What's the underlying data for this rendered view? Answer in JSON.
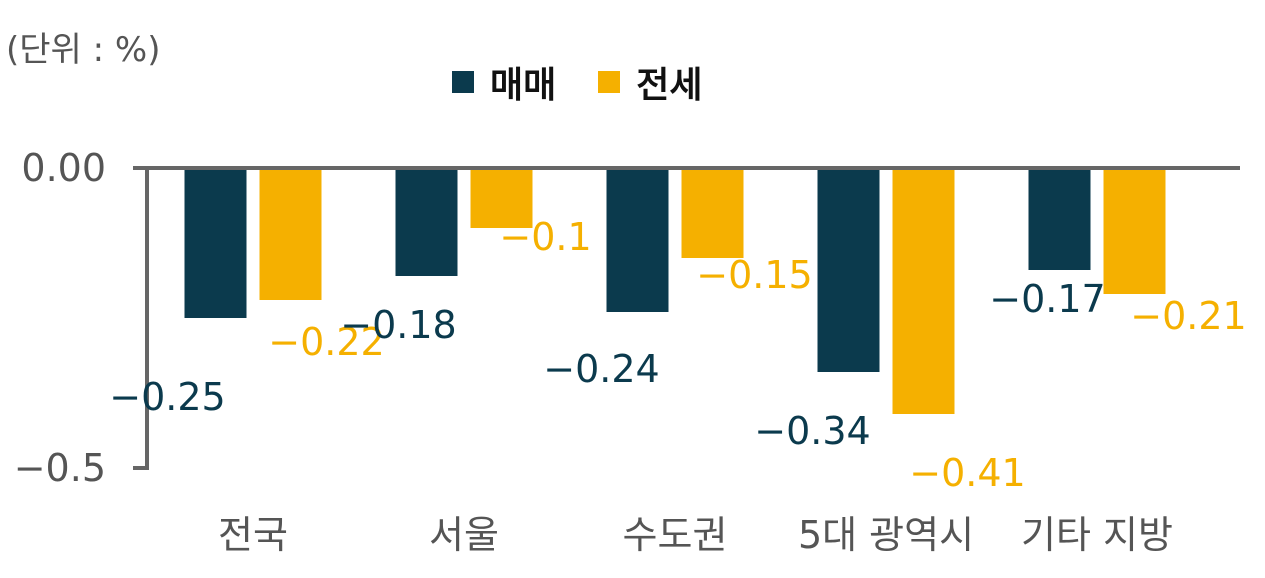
{
  "chart_data": {
    "type": "bar",
    "unit_label": "(단위 : %)",
    "categories": [
      "전국",
      "서울",
      "수도권",
      "5대 광역시",
      "기타 지방"
    ],
    "series": [
      {
        "name": "매매",
        "color": "#0b3a4d",
        "values": [
          -0.25,
          -0.18,
          -0.24,
          -0.34,
          -0.17
        ],
        "labels": [
          "−0.25",
          "−0.18",
          "−0.24",
          "−0.34",
          "−0.17"
        ]
      },
      {
        "name": "전세",
        "color": "#f5b000",
        "values": [
          -0.22,
          -0.1,
          -0.15,
          -0.41,
          -0.21
        ],
        "labels": [
          "−0.22",
          "−0.1",
          "−0.15",
          "−0.41",
          "−0.21"
        ]
      }
    ],
    "yticks": [
      {
        "value": 0,
        "label": "0.00"
      },
      {
        "value": -0.5,
        "label": "−0.5"
      }
    ],
    "ylim": [
      -0.5,
      0
    ],
    "legend_position": "top"
  }
}
